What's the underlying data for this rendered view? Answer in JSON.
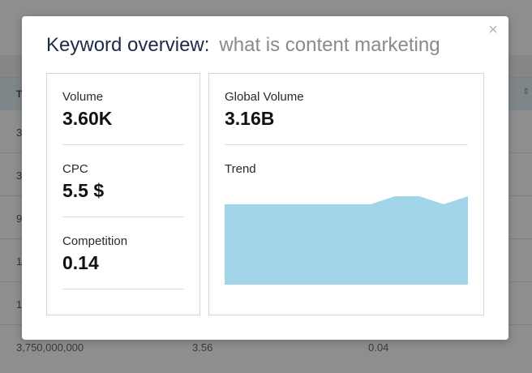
{
  "background": {
    "header_first_col": "To",
    "rows": [
      {
        "c1": "3"
      },
      {
        "c1": "3"
      },
      {
        "c1": "9"
      },
      {
        "c1": "1"
      },
      {
        "c1": "1"
      }
    ],
    "last_row": {
      "c1": "3,750,000,000",
      "c2": "3.56",
      "c3": "0.04"
    }
  },
  "modal": {
    "title_label": "Keyword overview:",
    "keyword": "what is content marketing",
    "close_glyph": "×",
    "metrics_left": [
      {
        "label": "Volume",
        "value": "3.60K"
      },
      {
        "label": "CPC",
        "value": "5.5 $"
      },
      {
        "label": "Competition",
        "value": "0.14"
      }
    ],
    "metrics_right": {
      "global_volume_label": "Global Volume",
      "global_volume_value": "3.16B",
      "trend_label": "Trend"
    },
    "trend": {
      "values": [
        10,
        10,
        10,
        10,
        10,
        10,
        10,
        11,
        11,
        10,
        11
      ],
      "min": 0,
      "max": 11.5,
      "color": "#a3d5ea"
    }
  }
}
